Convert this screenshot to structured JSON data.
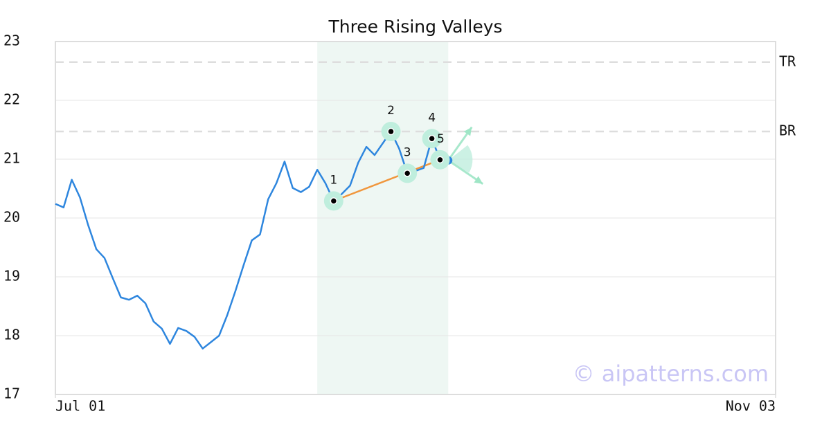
{
  "chart_data": {
    "type": "line",
    "title": "Three Rising Valleys",
    "x": [
      0,
      1,
      2,
      3,
      4,
      5,
      6,
      7,
      8,
      9,
      10,
      11,
      12,
      13,
      14,
      15,
      16,
      17,
      18,
      19,
      20,
      21,
      22,
      23,
      24,
      25,
      26,
      27,
      28,
      29,
      30,
      31,
      32,
      33,
      34,
      35,
      36,
      37,
      38,
      39,
      40,
      41,
      42,
      43,
      44,
      45,
      46,
      47,
      48
    ],
    "series": [
      {
        "color": "#2e86de",
        "values": [
          20.24,
          20.18,
          20.65,
          20.35,
          19.88,
          19.47,
          19.32,
          18.98,
          18.65,
          18.61,
          18.68,
          18.55,
          18.24,
          18.12,
          17.86,
          18.13,
          18.08,
          17.98,
          17.78,
          17.89,
          18.0,
          18.35,
          18.76,
          19.2,
          19.62,
          19.72,
          20.32,
          20.59,
          20.96,
          20.51,
          20.44,
          20.53,
          20.82,
          20.59,
          20.29,
          20.41,
          20.55,
          20.94,
          21.21,
          21.07,
          21.27,
          21.47,
          21.18,
          20.76,
          20.8,
          20.85,
          21.35,
          20.99,
          20.98
        ]
      }
    ],
    "xlim": [
      0,
      88
    ],
    "xticks": [
      {
        "value": 0,
        "label": "Jul 01"
      },
      {
        "value": 88,
        "label": "Nov 03"
      }
    ],
    "ylim": [
      17,
      23
    ],
    "yticks": [
      17,
      18,
      19,
      20,
      21,
      22,
      23
    ],
    "grid": true,
    "highlight_range": [
      32,
      48
    ],
    "reference_lines": [
      {
        "label": "TR",
        "value": 22.65
      },
      {
        "label": "BR",
        "value": 21.47
      }
    ],
    "pivots": [
      {
        "label": "1",
        "x": 34,
        "value": 20.29
      },
      {
        "label": "2",
        "x": 41,
        "value": 21.47
      },
      {
        "label": "3",
        "x": 43,
        "value": 20.76
      },
      {
        "label": "4",
        "x": 46,
        "value": 21.35
      },
      {
        "label": "5",
        "x": 47,
        "value": 20.99
      }
    ],
    "trendline_color": "#f0963c",
    "watermark": "© aipatterns.com"
  }
}
